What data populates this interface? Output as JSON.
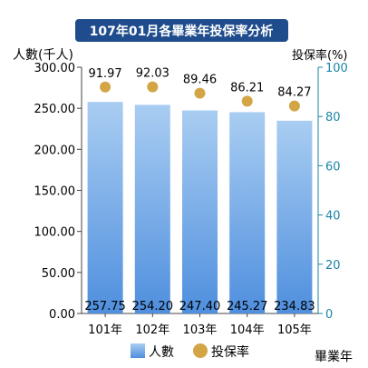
{
  "chart_data": {
    "type": "bar",
    "title": "107年01月各畢業年投保率分析",
    "categories": [
      "101年",
      "102年",
      "103年",
      "104年",
      "105年"
    ],
    "series": [
      {
        "name": "人數",
        "type": "bar",
        "axis": "left",
        "values": [
          257.75,
          254.2,
          247.4,
          245.27,
          234.83
        ],
        "value_labels": [
          "257.75",
          "254.20",
          "247.40",
          "245.27",
          "234.83"
        ]
      },
      {
        "name": "投保率",
        "type": "scatter",
        "axis": "right",
        "values": [
          91.97,
          92.03,
          89.46,
          86.21,
          84.27
        ],
        "value_labels": [
          "91.97",
          "92.03",
          "89.46",
          "86.21",
          "84.27"
        ]
      }
    ],
    "y_left": {
      "label": "人數(千人)",
      "ylim": [
        0,
        300
      ],
      "ticks": [
        0,
        50,
        100,
        150,
        200,
        250,
        300
      ],
      "tick_labels": [
        "0.00",
        "50.00",
        "100.00",
        "150.00",
        "200.00",
        "250.00",
        "300.00"
      ]
    },
    "y_right": {
      "label": "投保率(%)",
      "ylim": [
        0,
        100
      ],
      "ticks": [
        0,
        20,
        40,
        60,
        80,
        100
      ],
      "tick_labels": [
        "0",
        "20",
        "40",
        "60",
        "80",
        "100"
      ]
    },
    "xlabel": "畢業年",
    "legend": {
      "position": "bottom",
      "items": [
        "人數",
        "投保率"
      ]
    },
    "grid": false,
    "colors": {
      "bar_top": "#a9cdf2",
      "bar_bottom": "#4f8fde",
      "dot": "#d3a545",
      "title_bg": "#1e4c8c",
      "title_text": "#ffffff",
      "right_axis": "#1a86a8"
    }
  }
}
